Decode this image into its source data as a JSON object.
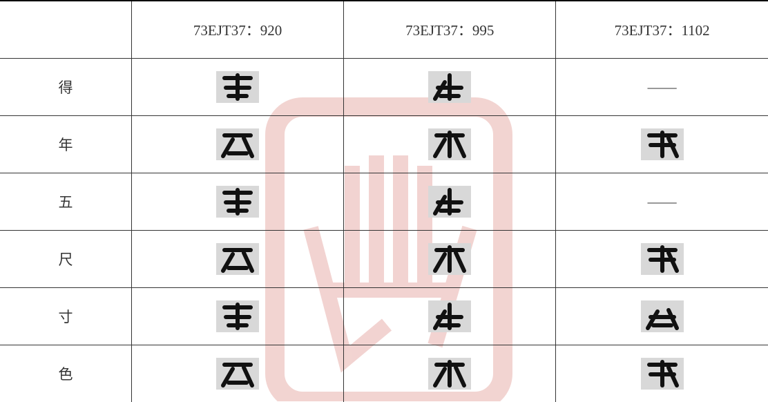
{
  "table": {
    "columns": [
      "73EJT37：920",
      "73EJT37：995",
      "73EJT37：1102"
    ],
    "rows": [
      {
        "label": "得",
        "cells": [
          null,
          null,
          "——"
        ]
      },
      {
        "label": "年",
        "cells": [
          null,
          null,
          null
        ]
      },
      {
        "label": "五",
        "cells": [
          null,
          null,
          "——"
        ]
      },
      {
        "label": "尺",
        "cells": [
          null,
          null,
          null
        ]
      },
      {
        "label": "寸",
        "cells": [
          null,
          null,
          null
        ]
      },
      {
        "label": "色",
        "cells": [
          null,
          null,
          null
        ]
      }
    ]
  }
}
